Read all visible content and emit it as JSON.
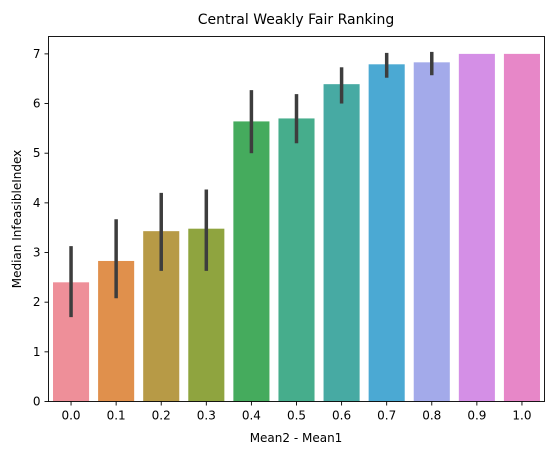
{
  "chart_data": {
    "type": "bar",
    "title": "Central Weakly Fair Ranking",
    "xlabel": "Mean2 - Mean1",
    "ylabel": "Median InfeasibleIndex",
    "categories": [
      "0.0",
      "0.1",
      "0.2",
      "0.3",
      "0.4",
      "0.5",
      "0.6",
      "0.7",
      "0.8",
      "0.9",
      "1.0"
    ],
    "values": [
      2.4,
      2.83,
      3.43,
      3.48,
      5.64,
      5.7,
      6.39,
      6.79,
      6.83,
      7.0,
      7.0
    ],
    "error_low": [
      1.7,
      2.08,
      2.63,
      2.63,
      5.0,
      5.2,
      6.0,
      6.52,
      6.57,
      7.0,
      7.0
    ],
    "error_high": [
      3.13,
      3.67,
      4.2,
      4.27,
      6.27,
      6.19,
      6.73,
      7.02,
      7.04,
      7.0,
      7.0
    ],
    "ylim": [
      0,
      7.35
    ],
    "yticks": [
      "0",
      "1",
      "2",
      "3",
      "4",
      "5",
      "6",
      "7"
    ],
    "colors": [
      "#ee8f99",
      "#e0904c",
      "#b79a46",
      "#8fa43f",
      "#45ab5d",
      "#46ad8c",
      "#47aaa3",
      "#4ba9d3",
      "#a3aaea",
      "#d48fe6",
      "#e787c8"
    ],
    "error_color": "#3d3d3d"
  }
}
